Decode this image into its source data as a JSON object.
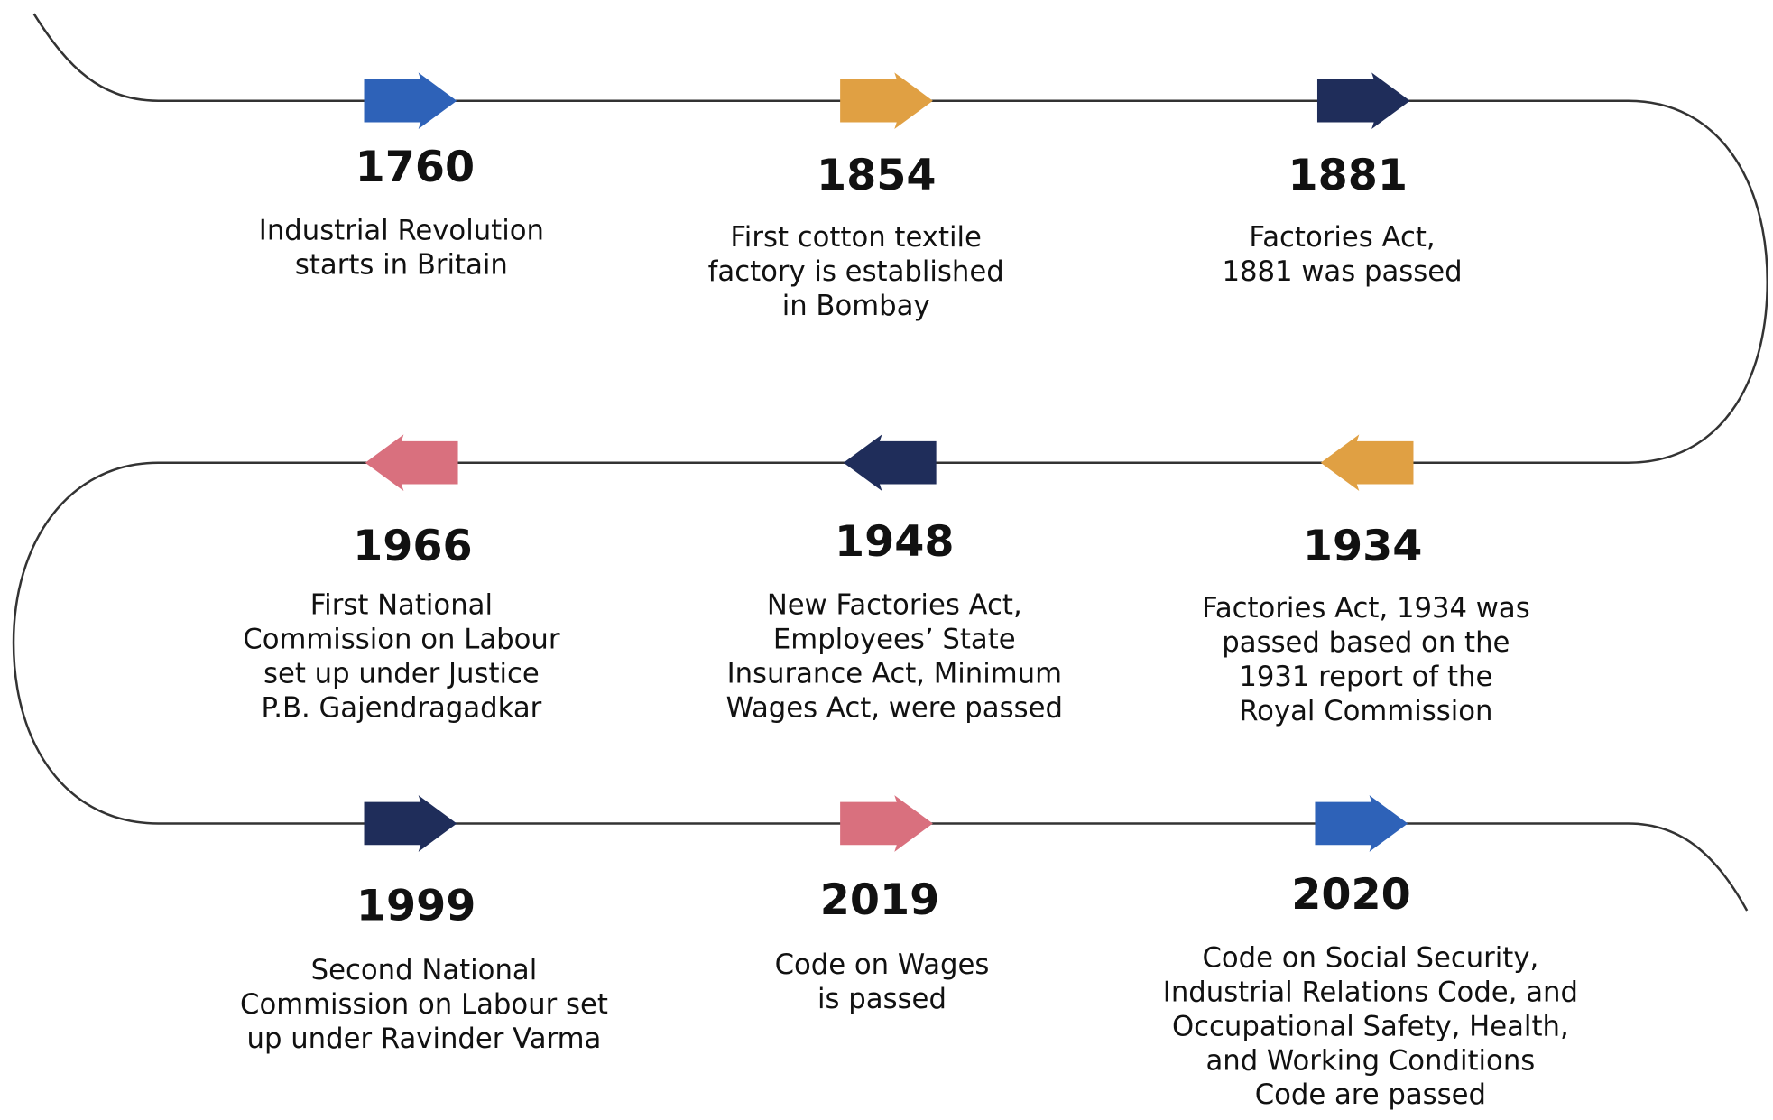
{
  "events": [
    {
      "year": "1760",
      "lines": [
        "Industrial Revolution",
        "starts in Britain"
      ],
      "color": "#2e62b8"
    },
    {
      "year": "1854",
      "lines": [
        "First cotton textile",
        "factory is established",
        "in Bombay"
      ],
      "color": "#e0a043"
    },
    {
      "year": "1881",
      "lines": [
        "Factories Act,",
        "1881 was passed"
      ],
      "color": "#1f2d5a"
    },
    {
      "year": "1934",
      "lines": [
        "Factories Act, 1934 was",
        "passed based on the",
        "1931 report of the",
        "Royal Commission"
      ],
      "color": "#e0a043"
    },
    {
      "year": "1948",
      "lines": [
        "New Factories Act,",
        "Employees’ State",
        "Insurance Act, Minimum",
        "Wages Act, were passed"
      ],
      "color": "#1f2d5a"
    },
    {
      "year": "1966",
      "lines": [
        "First National",
        "Commission on Labour",
        "set up under Justice",
        "P.B. Gajendragadkar"
      ],
      "color": "#d9707e"
    },
    {
      "year": "1999",
      "lines": [
        "Second National",
        "Commission on Labour set",
        "up under Ravinder Varma"
      ],
      "color": "#1f2d5a"
    },
    {
      "year": "2019",
      "lines": [
        "Code on Wages",
        "is passed"
      ],
      "color": "#d9707e"
    },
    {
      "year": "2020",
      "lines": [
        "Code on Social Security,",
        "Industrial Relations Code, and",
        "Occupational Safety, Health,",
        "and Working Conditions",
        "Code are passed"
      ],
      "color": "#2e62b8"
    }
  ]
}
